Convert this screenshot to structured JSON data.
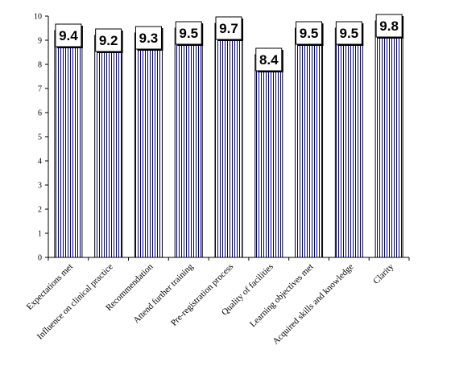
{
  "chart_data": {
    "type": "bar",
    "categories": [
      "Expectations met",
      "Influence on clinical practice",
      "Recommendation",
      "Attend further training",
      "Pre-registration process",
      "Quality of facilities",
      "Learning objectives met",
      "Acquired skills and knowledge",
      "Clarity"
    ],
    "values": [
      9.4,
      9.2,
      9.3,
      9.5,
      9.7,
      8.4,
      9.5,
      9.5,
      9.8
    ],
    "data_labels": [
      "9.4",
      "9.2",
      "9.3",
      "9.5",
      "9.7",
      "8.4",
      "9.5",
      "9.5",
      "9.8"
    ],
    "ylim": [
      0,
      10
    ],
    "yticks": [
      "0",
      "1",
      "2",
      "3",
      "4",
      "5",
      "6",
      "7",
      "8",
      "9",
      "10"
    ],
    "grid": false,
    "legend": "none",
    "bar_fill": "vertical-stripes",
    "colors": {
      "stripe": "#000080",
      "bar_bg": "#ffffff",
      "axis": "#000000"
    }
  }
}
